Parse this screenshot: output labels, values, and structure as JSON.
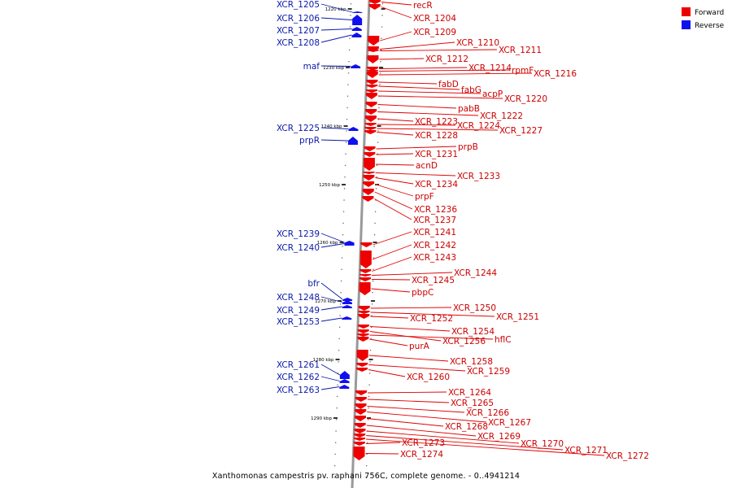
{
  "caption": "Xanthomonas campestris pv. raphani 756C, complete genome. - 0..4941214",
  "legend": [
    {
      "label": "Forward",
      "color": "#ee0000"
    },
    {
      "label": "Reverse",
      "color": "#1010ee"
    }
  ],
  "colors": {
    "forward": "#ee0000",
    "reverse": "#1010ee",
    "backbone": "#999999"
  },
  "ticks": [
    "1220 kbp",
    "1230 kbp",
    "1240 kbp",
    "1250 kbp",
    "1260 kbp",
    "1270 kbp",
    "1280 kbp",
    "1290 kbp"
  ],
  "reverse_genes": [
    "XCR_1205",
    "XCR_1206",
    "XCR_1207",
    "XCR_1208",
    "maf",
    "XCR_1225",
    "prpR",
    "XCR_1239",
    "XCR_1240",
    "bfr",
    "XCR_1248",
    "XCR_1249",
    "XCR_1253",
    "XCR_1261",
    "XCR_1262",
    "XCR_1263"
  ],
  "forward_genes": [
    "recR",
    "XCR_1204",
    "XCR_1209",
    "XCR_1210",
    "XCR_1211",
    "XCR_1212",
    "XCR_1214",
    "rpmF",
    "XCR_1216",
    "fabD",
    "fabG",
    "acpP",
    "XCR_1220",
    "pabB",
    "XCR_1222",
    "XCR_1223",
    "XCR_1224",
    "XCR_1227",
    "XCR_1228",
    "prpB",
    "XCR_1231",
    "acnD",
    "XCR_1233",
    "XCR_1234",
    "prpF",
    "XCR_1236",
    "XCR_1237",
    "XCR_1241",
    "XCR_1242",
    "XCR_1243",
    "XCR_1244",
    "XCR_1245",
    "pbpC",
    "XCR_1250",
    "XCR_1251",
    "XCR_1252",
    "XCR_1254",
    "XCR_1256",
    "hflC",
    "purA",
    "XCR_1258",
    "XCR_1259",
    "XCR_1260",
    "XCR_1264",
    "XCR_1265",
    "XCR_1266",
    "XCR_1267",
    "XCR_1268",
    "XCR_1269",
    "XCR_1270",
    "XCR_1271",
    "XCR_1272",
    "XCR_1273",
    "XCR_1274"
  ]
}
